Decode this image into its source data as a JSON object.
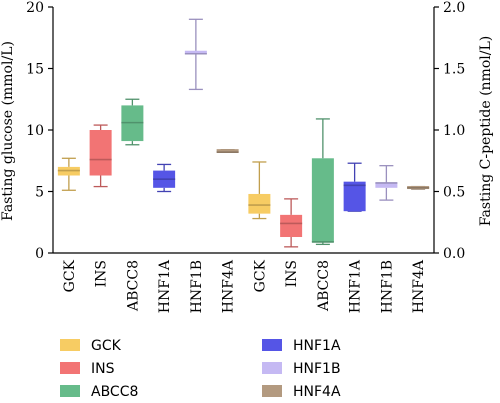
{
  "chart_data": {
    "type": "box",
    "categories": [
      "GCK",
      "INS",
      "ABCC8",
      "HNF1A",
      "HNF1B",
      "HNF4A",
      "GCK",
      "INS",
      "ABCC8",
      "HNF1A",
      "HNF1B",
      "HNF4A"
    ],
    "left_axis": {
      "label": "Fasting glucose (mmol/L)",
      "ylim": [
        0,
        20
      ],
      "ticks": [
        "0",
        "5",
        "10",
        "15",
        "20"
      ]
    },
    "right_axis": {
      "label": "Fasting C-peptide (nmol/L)",
      "ylim": [
        0,
        2.0
      ],
      "ticks": [
        "0.0",
        "0.5",
        "1.0",
        "1.5",
        "2.0"
      ]
    },
    "series": [
      {
        "name": "Fasting glucose (mmol/L)",
        "axis": "left",
        "boxes": [
          {
            "gene": "GCK",
            "min": 5.1,
            "q1": 6.3,
            "median": 6.7,
            "q3": 7.0,
            "max": 7.7,
            "color": "#f7cc63"
          },
          {
            "gene": "INS",
            "min": 5.4,
            "q1": 6.3,
            "median": 7.6,
            "q3": 10.0,
            "max": 10.4,
            "color": "#f27474"
          },
          {
            "gene": "ABCC8",
            "min": 8.8,
            "q1": 9.1,
            "median": 10.6,
            "q3": 12.0,
            "max": 12.5,
            "color": "#66bb8a"
          },
          {
            "gene": "HNF1A",
            "min": 5.0,
            "q1": 5.3,
            "median": 6.0,
            "q3": 6.7,
            "max": 7.2,
            "color": "#5555e6"
          },
          {
            "gene": "HNF1B",
            "min": 13.3,
            "q1": 16.2,
            "median": 16.2,
            "q3": 16.2,
            "max": 19.0,
            "color": "#c5b9f3"
          },
          {
            "gene": "HNF4A",
            "min": 8.2,
            "q1": 8.2,
            "median": 8.2,
            "q3": 8.4,
            "max": 8.4,
            "color": "#b39a80"
          }
        ]
      },
      {
        "name": "Fasting C-peptide (nmol/L)",
        "axis": "right",
        "boxes": [
          {
            "gene": "GCK",
            "min": 0.28,
            "q1": 0.32,
            "median": 0.39,
            "q3": 0.48,
            "max": 0.74,
            "color": "#f7cc63"
          },
          {
            "gene": "INS",
            "min": 0.05,
            "q1": 0.13,
            "median": 0.24,
            "q3": 0.31,
            "max": 0.44,
            "color": "#f27474"
          },
          {
            "gene": "ABCC8",
            "min": 0.07,
            "q1": 0.09,
            "median": 0.09,
            "q3": 0.77,
            "max": 1.09,
            "color": "#66bb8a"
          },
          {
            "gene": "HNF1A",
            "min": 0.34,
            "q1": 0.34,
            "median": 0.55,
            "q3": 0.58,
            "max": 0.73,
            "color": "#5555e6"
          },
          {
            "gene": "HNF1B",
            "min": 0.43,
            "q1": 0.53,
            "median": 0.57,
            "q3": 0.57,
            "max": 0.71,
            "color": "#c5b9f3"
          },
          {
            "gene": "HNF4A",
            "min": 0.52,
            "q1": 0.52,
            "median": 0.53,
            "q3": 0.54,
            "max": 0.54,
            "color": "#b39a80"
          }
        ]
      }
    ],
    "legend": {
      "placement": "bottom",
      "items": [
        {
          "label": "GCK",
          "color": "#f7cc63"
        },
        {
          "label": "HNF1A",
          "color": "#5555e6"
        },
        {
          "label": "INS",
          "color": "#f27474"
        },
        {
          "label": "HNF1B",
          "color": "#c5b9f3"
        },
        {
          "label": "ABCC8",
          "color": "#66bb8a"
        },
        {
          "label": "HNF4A",
          "color": "#b39a80"
        }
      ]
    },
    "grid": false
  }
}
